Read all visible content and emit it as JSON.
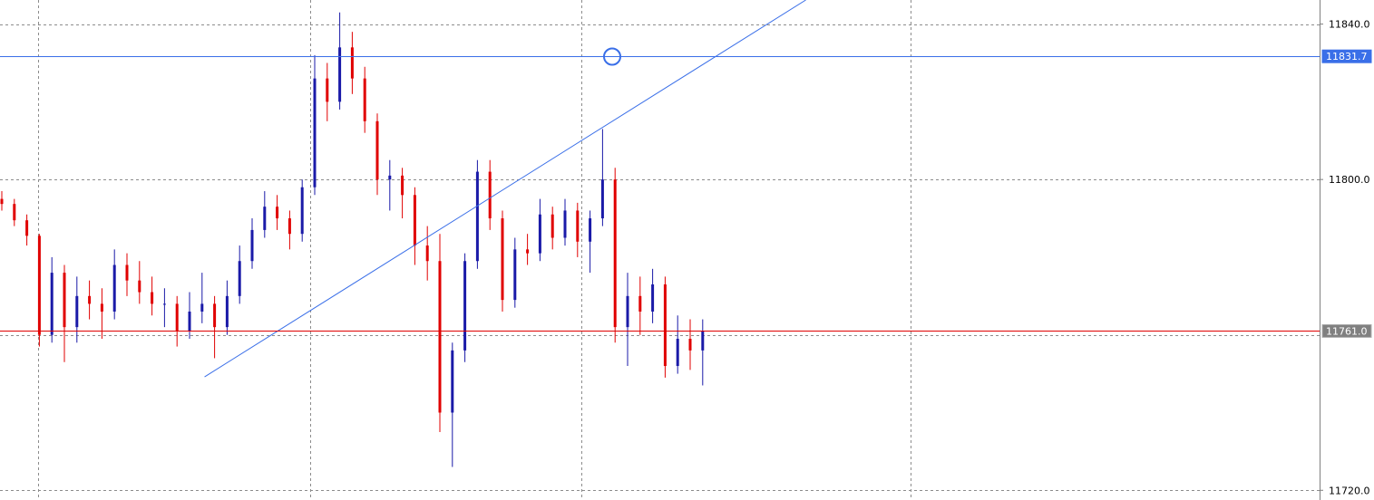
{
  "chart_data": {
    "type": "candlestick",
    "title": "",
    "xlabel": "",
    "ylabel": "",
    "ylim": [
      11717.5,
      11846.2
    ],
    "grid": true,
    "y_ticks": [
      "11840.0",
      "11800.0",
      "11720.0"
    ],
    "y_tick_values": [
      11840,
      11800,
      11760,
      11720
    ],
    "colors": {
      "bull": "#1a1aa8",
      "bear": "#e00000",
      "grid": "#8c8c8c",
      "trendline": "#3a6fe8",
      "level_blue": "#3a6fe8",
      "level_red": "#e00000"
    },
    "bars": [
      [
        11795,
        11797,
        11792,
        11793.7
      ],
      [
        11793.7,
        11795,
        11788,
        11789.5
      ],
      [
        11789.5,
        11791,
        11783,
        11785.5
      ],
      [
        11785.5,
        11786,
        11757,
        11760
      ],
      [
        11760,
        11780,
        11758,
        11776
      ],
      [
        11776,
        11778,
        11753,
        11762
      ],
      [
        11762,
        11775,
        11758,
        11770
      ],
      [
        11770,
        11774,
        11764,
        11768
      ],
      [
        11768,
        11772,
        11759,
        11766
      ],
      [
        11766,
        11782,
        11764,
        11778
      ],
      [
        11778,
        11781,
        11770,
        11774
      ],
      [
        11774,
        11779,
        11768,
        11771
      ],
      [
        11771,
        11775,
        11765,
        11768
      ],
      [
        11768,
        11772,
        11762,
        11768
      ],
      [
        11768,
        11770,
        11757,
        11761
      ],
      [
        11761,
        11771,
        11759,
        11766
      ],
      [
        11766,
        11776,
        11763,
        11768
      ],
      [
        11768,
        11770,
        11754,
        11762
      ],
      [
        11762,
        11774,
        11760,
        11770
      ],
      [
        11770,
        11783,
        11768,
        11779
      ],
      [
        11779,
        11790,
        11777,
        11787
      ],
      [
        11787,
        11797,
        11785,
        11793
      ],
      [
        11793,
        11796,
        11787,
        11790
      ],
      [
        11790,
        11792,
        11782,
        11786
      ],
      [
        11786,
        11800,
        11784,
        11798
      ],
      [
        11798,
        11832,
        11796,
        11826
      ],
      [
        11826,
        11830,
        11815,
        11820
      ],
      [
        11820,
        11843,
        11818,
        11834
      ],
      [
        11834,
        11838,
        11822,
        11826
      ],
      [
        11826,
        11829,
        11812,
        11815
      ],
      [
        11815,
        11817,
        11796,
        11800
      ],
      [
        11800,
        11805,
        11792,
        11801
      ],
      [
        11801,
        11803,
        11790,
        11796
      ],
      [
        11796,
        11798,
        11778,
        11783
      ],
      [
        11783,
        11788,
        11774,
        11779
      ],
      [
        11779,
        11786,
        11735,
        11740
      ],
      [
        11740,
        11758,
        11726,
        11756
      ],
      [
        11756,
        11781,
        11753,
        11779
      ],
      [
        11779,
        11805,
        11777,
        11802
      ],
      [
        11802,
        11805,
        11787,
        11790
      ],
      [
        11790,
        11792,
        11766,
        11769
      ],
      [
        11769,
        11785,
        11767,
        11782
      ],
      [
        11782,
        11786,
        11778,
        11781
      ],
      [
        11781,
        11795,
        11779,
        11791
      ],
      [
        11791,
        11793,
        11782,
        11785
      ],
      [
        11785,
        11795,
        11783,
        11792
      ],
      [
        11792,
        11794,
        11780,
        11784
      ],
      [
        11784,
        11792,
        11776,
        11790
      ],
      [
        11790,
        11813,
        11788,
        11800
      ],
      [
        11800,
        11803,
        11758,
        11762
      ],
      [
        11762,
        11776,
        11752,
        11770
      ],
      [
        11770,
        11775,
        11760,
        11766
      ],
      [
        11766,
        11777,
        11763,
        11773
      ],
      [
        11773,
        11775,
        11749,
        11752
      ],
      [
        11752,
        11765,
        11750,
        11759
      ],
      [
        11759,
        11764,
        11751,
        11756
      ],
      [
        11756,
        11764,
        11747,
        11761
      ]
    ],
    "horizontal_levels": [
      {
        "price": 11831.7,
        "label": "11831.7",
        "color": "#3a6fe8",
        "selected": true
      },
      {
        "price": 11761.0,
        "label": "11761.0",
        "color": "#e00000",
        "selected": false
      }
    ],
    "trendline": {
      "p1": {
        "bar": 16.2,
        "price": 11749.2
      },
      "p2": {
        "bar": 47.5,
        "price": 11812.4
      },
      "ray": true
    }
  }
}
